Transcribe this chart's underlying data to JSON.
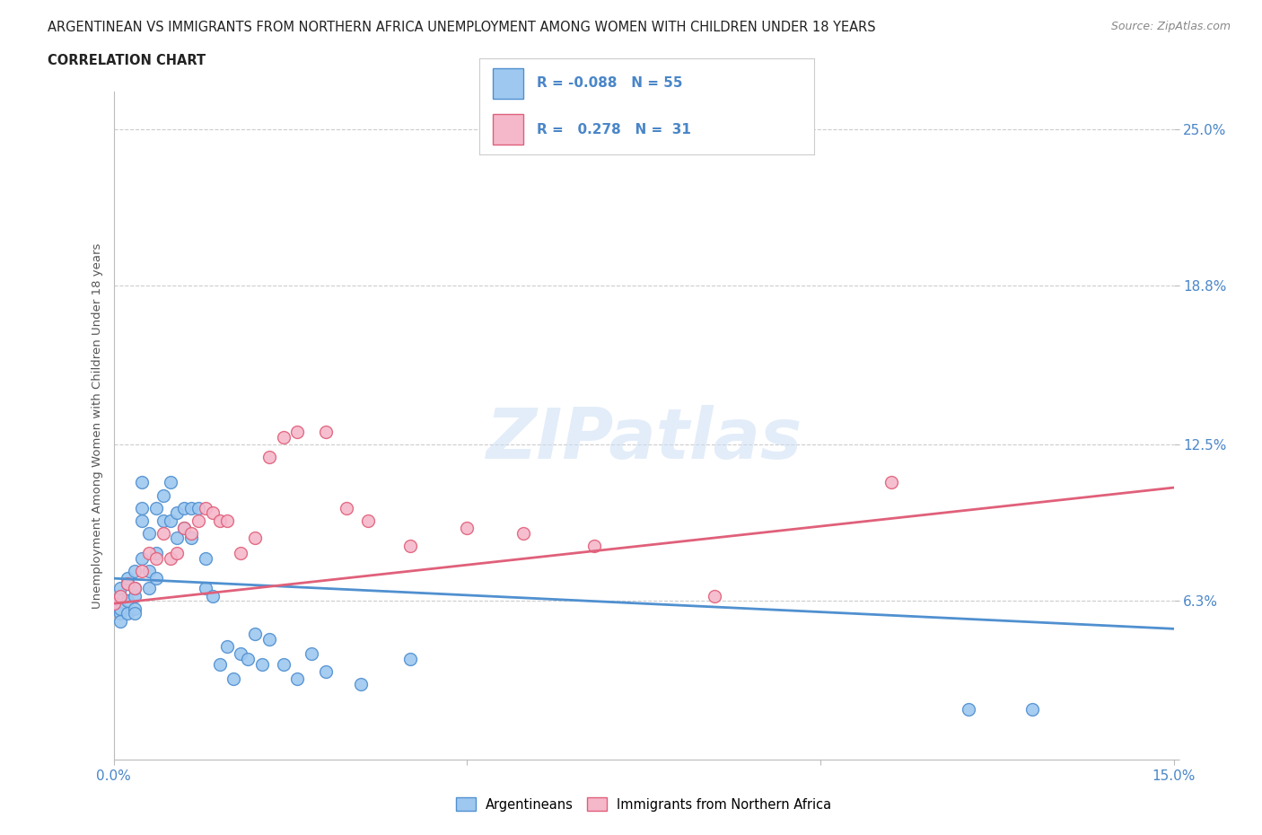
{
  "title_line1": "ARGENTINEAN VS IMMIGRANTS FROM NORTHERN AFRICA UNEMPLOYMENT AMONG WOMEN WITH CHILDREN UNDER 18 YEARS",
  "title_line2": "CORRELATION CHART",
  "source": "Source: ZipAtlas.com",
  "ylabel": "Unemployment Among Women with Children Under 18 years",
  "xlim": [
    0.0,
    0.15
  ],
  "ylim": [
    0.0,
    0.265
  ],
  "background_color": "#ffffff",
  "grid_color": "#cccccc",
  "blue_color": "#9ec8f0",
  "pink_color": "#f5b8cb",
  "blue_line_color": "#5090d0",
  "pink_line_color": "#e0607a",
  "legend_R_blue": "-0.088",
  "legend_N_blue": "55",
  "legend_R_pink": "0.278",
  "legend_N_pink": "31",
  "argentineans_x": [
    0.0,
    0.001,
    0.001,
    0.001,
    0.001,
    0.001,
    0.002,
    0.002,
    0.002,
    0.002,
    0.003,
    0.003,
    0.003,
    0.003,
    0.003,
    0.004,
    0.004,
    0.004,
    0.004,
    0.005,
    0.005,
    0.005,
    0.006,
    0.006,
    0.006,
    0.007,
    0.007,
    0.008,
    0.008,
    0.009,
    0.009,
    0.01,
    0.01,
    0.011,
    0.011,
    0.012,
    0.013,
    0.013,
    0.014,
    0.015,
    0.016,
    0.017,
    0.018,
    0.019,
    0.02,
    0.021,
    0.022,
    0.024,
    0.026,
    0.028,
    0.03,
    0.035,
    0.042,
    0.121,
    0.13
  ],
  "argentineans_y": [
    0.062,
    0.058,
    0.065,
    0.06,
    0.055,
    0.068,
    0.063,
    0.07,
    0.058,
    0.072,
    0.065,
    0.068,
    0.06,
    0.075,
    0.058,
    0.08,
    0.095,
    0.1,
    0.11,
    0.09,
    0.068,
    0.075,
    0.1,
    0.082,
    0.072,
    0.105,
    0.095,
    0.095,
    0.11,
    0.098,
    0.088,
    0.1,
    0.092,
    0.1,
    0.088,
    0.1,
    0.068,
    0.08,
    0.065,
    0.038,
    0.045,
    0.032,
    0.042,
    0.04,
    0.05,
    0.038,
    0.048,
    0.038,
    0.032,
    0.042,
    0.035,
    0.03,
    0.04,
    0.02,
    0.02
  ],
  "northern_africa_x": [
    0.0,
    0.001,
    0.002,
    0.003,
    0.004,
    0.005,
    0.006,
    0.007,
    0.008,
    0.009,
    0.01,
    0.011,
    0.012,
    0.013,
    0.014,
    0.015,
    0.016,
    0.018,
    0.02,
    0.022,
    0.024,
    0.026,
    0.03,
    0.033,
    0.036,
    0.042,
    0.05,
    0.058,
    0.068,
    0.085,
    0.11
  ],
  "northern_africa_y": [
    0.062,
    0.065,
    0.07,
    0.068,
    0.075,
    0.082,
    0.08,
    0.09,
    0.08,
    0.082,
    0.092,
    0.09,
    0.095,
    0.1,
    0.098,
    0.095,
    0.095,
    0.082,
    0.088,
    0.12,
    0.128,
    0.13,
    0.13,
    0.1,
    0.095,
    0.085,
    0.092,
    0.09,
    0.085,
    0.065,
    0.11
  ],
  "blue_line_start_y": 0.072,
  "blue_line_end_y": 0.052,
  "pink_line_start_y": 0.062,
  "pink_line_end_y": 0.108
}
